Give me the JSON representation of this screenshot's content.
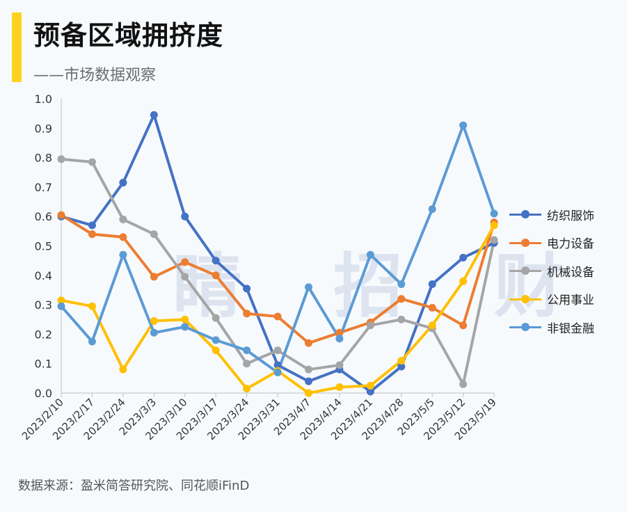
{
  "header": {
    "title": "预备区域拥挤度",
    "subtitle": "——市场数据观察"
  },
  "watermark": "睛 招 财",
  "footer": {
    "source": "数据来源：盈米简答研究院、同花顺iFinD"
  },
  "colors": {
    "accent_bar": "#ffd21f"
  },
  "chart_data": {
    "type": "line",
    "categories": [
      "2023/2/10",
      "2023/2/17",
      "2023/2/24",
      "2023/3/3",
      "2023/3/10",
      "2023/3/17",
      "2023/3/24",
      "2023/3/31",
      "2023/4/7",
      "2023/4/14",
      "2023/4/21",
      "2023/4/28",
      "2023/5/5",
      "2023/5/12",
      "2023/5/19"
    ],
    "y_ticks": [
      "0.0",
      "0.1",
      "0.2",
      "0.3",
      "0.4",
      "0.5",
      "0.6",
      "0.7",
      "0.8",
      "0.9",
      "1.0"
    ],
    "ylim": [
      0,
      1
    ],
    "grid": false,
    "legend_position": "right",
    "series": [
      {
        "name": "纺织服饰",
        "color": "#4472c4",
        "values": [
          0.6,
          0.57,
          0.715,
          0.945,
          0.6,
          0.45,
          0.355,
          0.095,
          0.04,
          0.08,
          0.005,
          0.09,
          0.37,
          0.46,
          0.51
        ]
      },
      {
        "name": "电力设备",
        "color": "#ed7d31",
        "values": [
          0.605,
          0.54,
          0.53,
          0.395,
          0.445,
          0.4,
          0.27,
          0.26,
          0.17,
          0.205,
          0.24,
          0.32,
          0.29,
          0.23,
          0.58
        ]
      },
      {
        "name": "机械设备",
        "color": "#a5a5a5",
        "values": [
          0.795,
          0.785,
          0.59,
          0.54,
          0.395,
          0.255,
          0.1,
          0.145,
          0.08,
          0.095,
          0.23,
          0.25,
          0.22,
          0.03,
          0.52
        ]
      },
      {
        "name": "公用事业",
        "color": "#ffc000",
        "values": [
          0.315,
          0.295,
          0.08,
          0.245,
          0.25,
          0.145,
          0.015,
          0.075,
          0.0,
          0.02,
          0.025,
          0.11,
          0.23,
          0.38,
          0.57
        ]
      },
      {
        "name": "非银金融",
        "color": "#5b9bd5",
        "values": [
          0.295,
          0.175,
          0.47,
          0.205,
          0.225,
          0.18,
          0.145,
          0.07,
          0.36,
          0.185,
          0.47,
          0.37,
          0.625,
          0.91,
          0.61
        ]
      }
    ]
  }
}
